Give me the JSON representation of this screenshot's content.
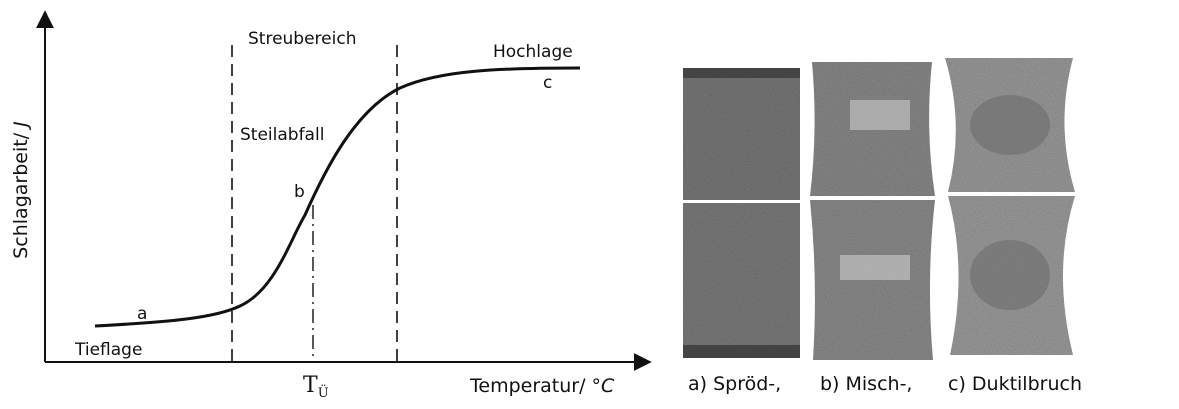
{
  "diagram": {
    "y_axis": {
      "text": "Schlagarbeit/",
      "unit": "J"
    },
    "x_axis": {
      "text": "Temperatur/",
      "unit": "°C"
    },
    "regions": {
      "scatter": "Streubereich",
      "upper": "Hochlage",
      "lower": "Tieflage",
      "drop": "Steilabfall"
    },
    "points": {
      "a": "a",
      "b": "b",
      "c": "c"
    },
    "transition": {
      "symbol": "T",
      "subscript": "Ü"
    }
  },
  "photos": {
    "captions": [
      "a) Spröd-,",
      "b) Misch-,",
      "c) Duktilbruch"
    ]
  }
}
